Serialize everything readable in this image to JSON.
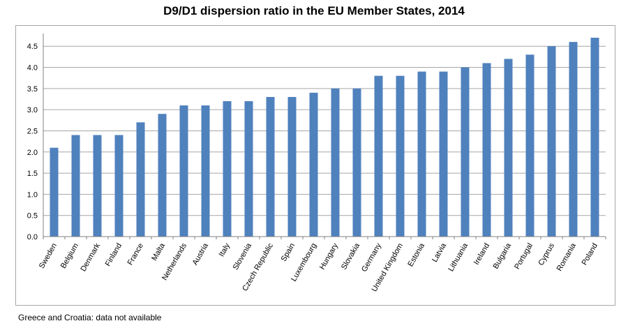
{
  "chart_data": {
    "type": "bar",
    "title": "D9/D1 dispersion ratio in the EU Member States, 2014",
    "xlabel": "",
    "ylabel": "",
    "ylim": [
      0,
      4.8
    ],
    "yticks": [
      "0.0",
      "0.5",
      "1.0",
      "1.5",
      "2.0",
      "2.5",
      "3.0",
      "3.5",
      "4.0",
      "4.5"
    ],
    "grid": true,
    "legend": "none",
    "bar_color": "#4f81bd",
    "categories": [
      "Sweden",
      "Belgium",
      "Denmark",
      "Finland",
      "France",
      "Malta",
      "Netherlands",
      "Austria",
      "Italy",
      "Slovenia",
      "Czech Republic",
      "Spain",
      "Luxembourg",
      "Hungary",
      "Slovakia",
      "Germany",
      "United Kingdom",
      "Estonia",
      "Latvia",
      "Lithuania",
      "Ireland",
      "Bulgaria",
      "Portugal",
      "Cyprus",
      "Romania",
      "Poland"
    ],
    "values": [
      2.1,
      2.4,
      2.4,
      2.4,
      2.7,
      2.9,
      3.1,
      3.1,
      3.2,
      3.2,
      3.3,
      3.3,
      3.4,
      3.5,
      3.5,
      3.8,
      3.8,
      3.9,
      3.9,
      4.0,
      4.1,
      4.2,
      4.3,
      4.5,
      4.6,
      4.7
    ]
  },
  "footnote": "Greece and Croatia: data not available"
}
